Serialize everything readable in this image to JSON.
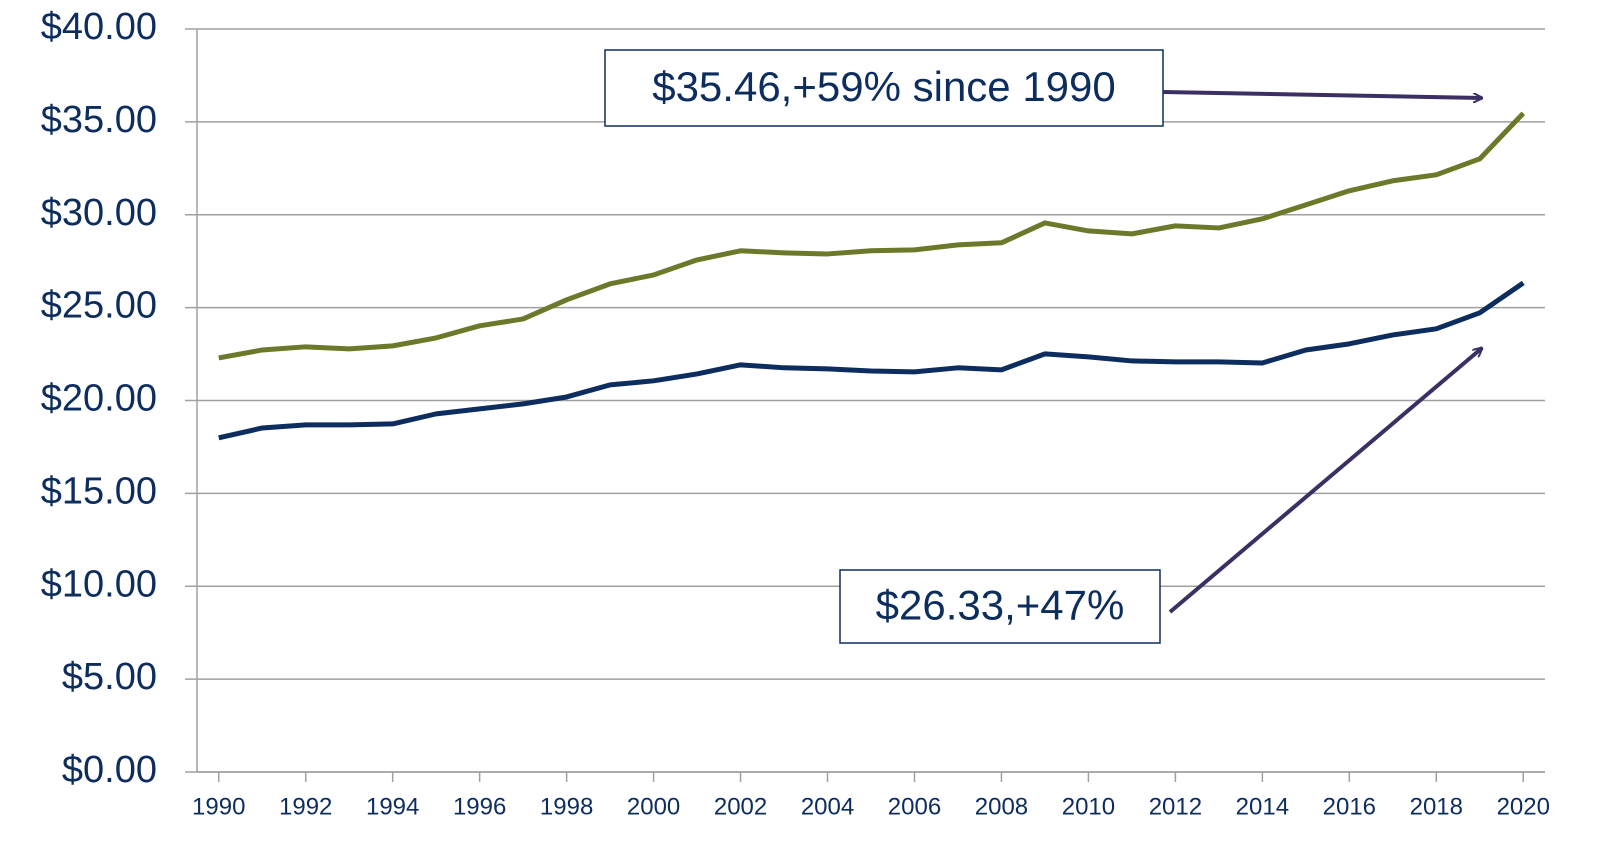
{
  "chart_data": {
    "type": "line",
    "x": [
      1990,
      1991,
      1992,
      1993,
      1994,
      1995,
      1996,
      1997,
      1998,
      1999,
      2000,
      2001,
      2002,
      2003,
      2004,
      2005,
      2006,
      2007,
      2008,
      2009,
      2010,
      2011,
      2012,
      2013,
      2014,
      2015,
      2016,
      2017,
      2018,
      2019,
      2020
    ],
    "series": [
      {
        "color": "#6b7a2a",
        "values": [
          22.29,
          22.72,
          22.89,
          22.78,
          22.94,
          23.37,
          24.02,
          24.39,
          25.42,
          26.28,
          26.76,
          27.57,
          28.06,
          27.95,
          27.89,
          28.06,
          28.11,
          28.38,
          28.49,
          29.56,
          29.13,
          28.97,
          29.4,
          29.29,
          29.78,
          30.53,
          31.29,
          31.83,
          32.15,
          33.01,
          35.46
        ]
      },
      {
        "color": "#0d2d5e",
        "values": [
          17.99,
          18.52,
          18.69,
          18.69,
          18.74,
          19.28,
          19.55,
          19.82,
          20.19,
          20.84,
          21.06,
          21.43,
          21.92,
          21.76,
          21.7,
          21.59,
          21.54,
          21.76,
          21.65,
          22.51,
          22.35,
          22.13,
          22.08,
          22.08,
          22.02,
          22.72,
          23.05,
          23.53,
          23.86,
          24.72,
          26.33
        ]
      }
    ],
    "xlim": [
      1989.5,
      2020.5
    ],
    "xticks": [
      1990,
      1992,
      1994,
      1996,
      1998,
      2000,
      2002,
      2004,
      2006,
      2008,
      2010,
      2012,
      2014,
      2016,
      2018,
      2020
    ],
    "ylim": [
      0,
      40
    ],
    "yticks": [
      {
        "value": 0,
        "label": "$0.00"
      },
      {
        "value": 5,
        "label": "$5.00"
      },
      {
        "value": 10,
        "label": "$10.00"
      },
      {
        "value": 15,
        "label": "$15.00"
      },
      {
        "value": 20,
        "label": "$20.00"
      },
      {
        "value": 25,
        "label": "$25.00"
      },
      {
        "value": 30,
        "label": "$30.00"
      },
      {
        "value": 35,
        "label": "$35.00"
      },
      {
        "value": 40,
        "label": "$40.00"
      }
    ],
    "grid": true,
    "annotations": [
      {
        "text": "$35.46,+59% since 1990"
      },
      {
        "text": "$26.33,+47%"
      }
    ]
  }
}
